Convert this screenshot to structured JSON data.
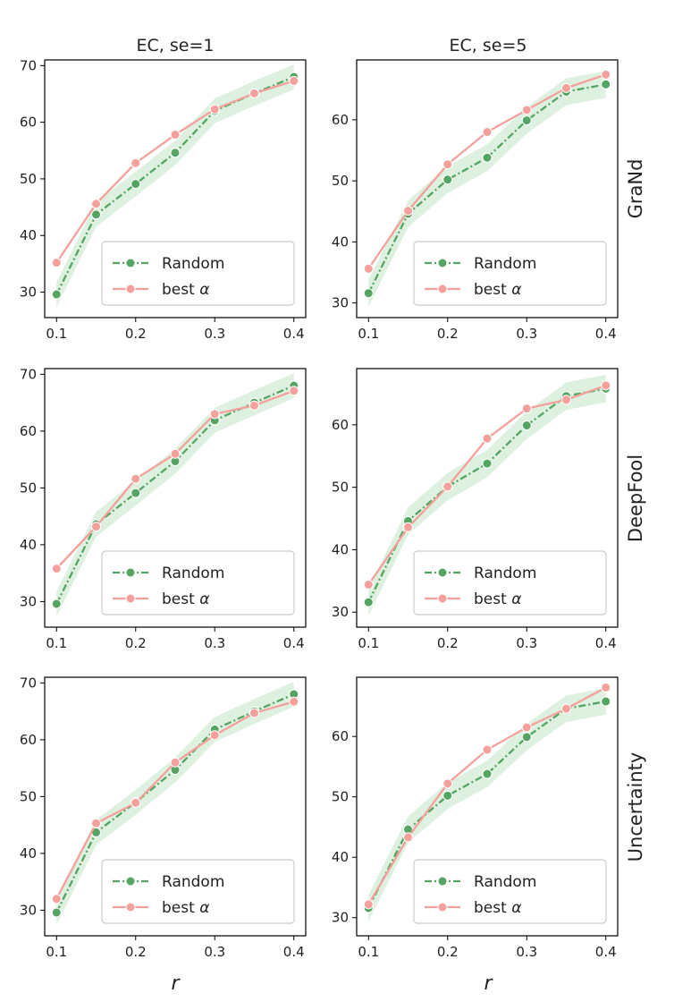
{
  "colors": {
    "random": "#55a463",
    "random_band": "#d3ecd6",
    "best_alpha": "#f4a09c",
    "frame": "#000000",
    "legend_border": "#cccccc"
  },
  "x_axis_label": "r",
  "column_titles": [
    "EC, se=1",
    "EC, se=5"
  ],
  "row_labels": [
    "GraNd",
    "DeepFool",
    "Uncertainty"
  ],
  "legend": {
    "random_label": "Random",
    "best_prefix": "best ",
    "best_symbol": "α"
  },
  "chart_data": [
    {
      "type": "line",
      "title": "EC, se=1",
      "row_label": "GraNd",
      "xlabel": "",
      "ylabel": "",
      "x": [
        0.1,
        0.15,
        0.2,
        0.25,
        0.3,
        0.35,
        0.4
      ],
      "xlim": [
        0.085,
        0.415
      ],
      "ylim": [
        25.5,
        71
      ],
      "xticks": [
        0.1,
        0.2,
        0.3,
        0.4
      ],
      "yticks": [
        30,
        40,
        50,
        60,
        70
      ],
      "legend_position": "lower-right",
      "grid": false,
      "series": [
        {
          "name": "Random",
          "values": [
            29.6,
            43.7,
            49.1,
            54.6,
            62.0,
            65.1,
            68.0
          ],
          "band": 2.2
        },
        {
          "name": "best α",
          "values": [
            35.2,
            45.6,
            52.8,
            57.8,
            62.3,
            65.1,
            67.3
          ]
        }
      ]
    },
    {
      "type": "line",
      "title": "EC, se=5",
      "row_label": "GraNd",
      "xlabel": "",
      "ylabel": "",
      "x": [
        0.1,
        0.15,
        0.2,
        0.25,
        0.3,
        0.35,
        0.4
      ],
      "xlim": [
        0.085,
        0.415
      ],
      "ylim": [
        27.6,
        69.8
      ],
      "xticks": [
        0.1,
        0.2,
        0.3,
        0.4
      ],
      "yticks": [
        30,
        40,
        50,
        60
      ],
      "legend_position": "lower-right",
      "grid": false,
      "series": [
        {
          "name": "Random",
          "values": [
            31.6,
            44.6,
            50.2,
            53.8,
            59.9,
            64.6,
            65.8
          ],
          "band": 2.2
        },
        {
          "name": "best α",
          "values": [
            35.6,
            45.1,
            52.7,
            58.0,
            61.6,
            65.2,
            67.4
          ]
        }
      ]
    },
    {
      "type": "line",
      "title": "",
      "row_label": "DeepFool",
      "xlabel": "",
      "ylabel": "",
      "x": [
        0.1,
        0.15,
        0.2,
        0.25,
        0.3,
        0.35,
        0.4
      ],
      "xlim": [
        0.085,
        0.415
      ],
      "ylim": [
        25.5,
        71
      ],
      "xticks": [
        0.1,
        0.2,
        0.3,
        0.4
      ],
      "yticks": [
        30,
        40,
        50,
        60,
        70
      ],
      "legend_position": "lower-right",
      "grid": false,
      "series": [
        {
          "name": "Random",
          "values": [
            29.6,
            43.6,
            49.1,
            54.7,
            61.9,
            65.0,
            68.0
          ],
          "band": 2.2
        },
        {
          "name": "best α",
          "values": [
            35.8,
            43.2,
            51.6,
            56.0,
            63.0,
            64.5,
            67.1
          ]
        }
      ]
    },
    {
      "type": "line",
      "title": "",
      "row_label": "DeepFool",
      "xlabel": "",
      "ylabel": "",
      "x": [
        0.1,
        0.15,
        0.2,
        0.25,
        0.3,
        0.35,
        0.4
      ],
      "xlim": [
        0.085,
        0.415
      ],
      "ylim": [
        27.6,
        69.0
      ],
      "xticks": [
        0.1,
        0.2,
        0.3,
        0.4
      ],
      "yticks": [
        30,
        40,
        50,
        60
      ],
      "legend_position": "lower-right",
      "grid": false,
      "series": [
        {
          "name": "Random",
          "values": [
            31.6,
            44.6,
            50.1,
            53.8,
            59.9,
            64.6,
            65.8
          ],
          "band": 2.2
        },
        {
          "name": "best α",
          "values": [
            34.4,
            43.6,
            50.1,
            57.8,
            62.6,
            64.0,
            66.3
          ]
        }
      ]
    },
    {
      "type": "line",
      "title": "",
      "row_label": "Uncertainty",
      "xlabel": "r",
      "ylabel": "",
      "x": [
        0.1,
        0.15,
        0.2,
        0.25,
        0.3,
        0.35,
        0.4
      ],
      "xlim": [
        0.085,
        0.415
      ],
      "ylim": [
        25.5,
        71
      ],
      "xticks": [
        0.1,
        0.2,
        0.3,
        0.4
      ],
      "yticks": [
        30,
        40,
        50,
        60,
        70
      ],
      "legend_position": "lower-right",
      "grid": false,
      "series": [
        {
          "name": "Random",
          "values": [
            29.6,
            43.7,
            49.0,
            54.7,
            61.8,
            65.0,
            68.0
          ],
          "band": 2.2
        },
        {
          "name": "best α",
          "values": [
            32.0,
            45.3,
            48.9,
            56.0,
            60.8,
            64.7,
            66.7
          ]
        }
      ]
    },
    {
      "type": "line",
      "title": "",
      "row_label": "Uncertainty",
      "xlabel": "r",
      "ylabel": "",
      "x": [
        0.1,
        0.15,
        0.2,
        0.25,
        0.3,
        0.35,
        0.4
      ],
      "xlim": [
        0.085,
        0.415
      ],
      "ylim": [
        27.0,
        69.8
      ],
      "xticks": [
        0.1,
        0.2,
        0.3,
        0.4
      ],
      "yticks": [
        30,
        40,
        50,
        60
      ],
      "legend_position": "lower-right",
      "grid": false,
      "series": [
        {
          "name": "Random",
          "values": [
            31.6,
            44.6,
            50.2,
            53.8,
            59.9,
            64.6,
            65.8
          ],
          "band": 2.2
        },
        {
          "name": "best α",
          "values": [
            32.2,
            43.3,
            52.2,
            57.8,
            61.5,
            64.6,
            68.1
          ]
        }
      ]
    }
  ]
}
